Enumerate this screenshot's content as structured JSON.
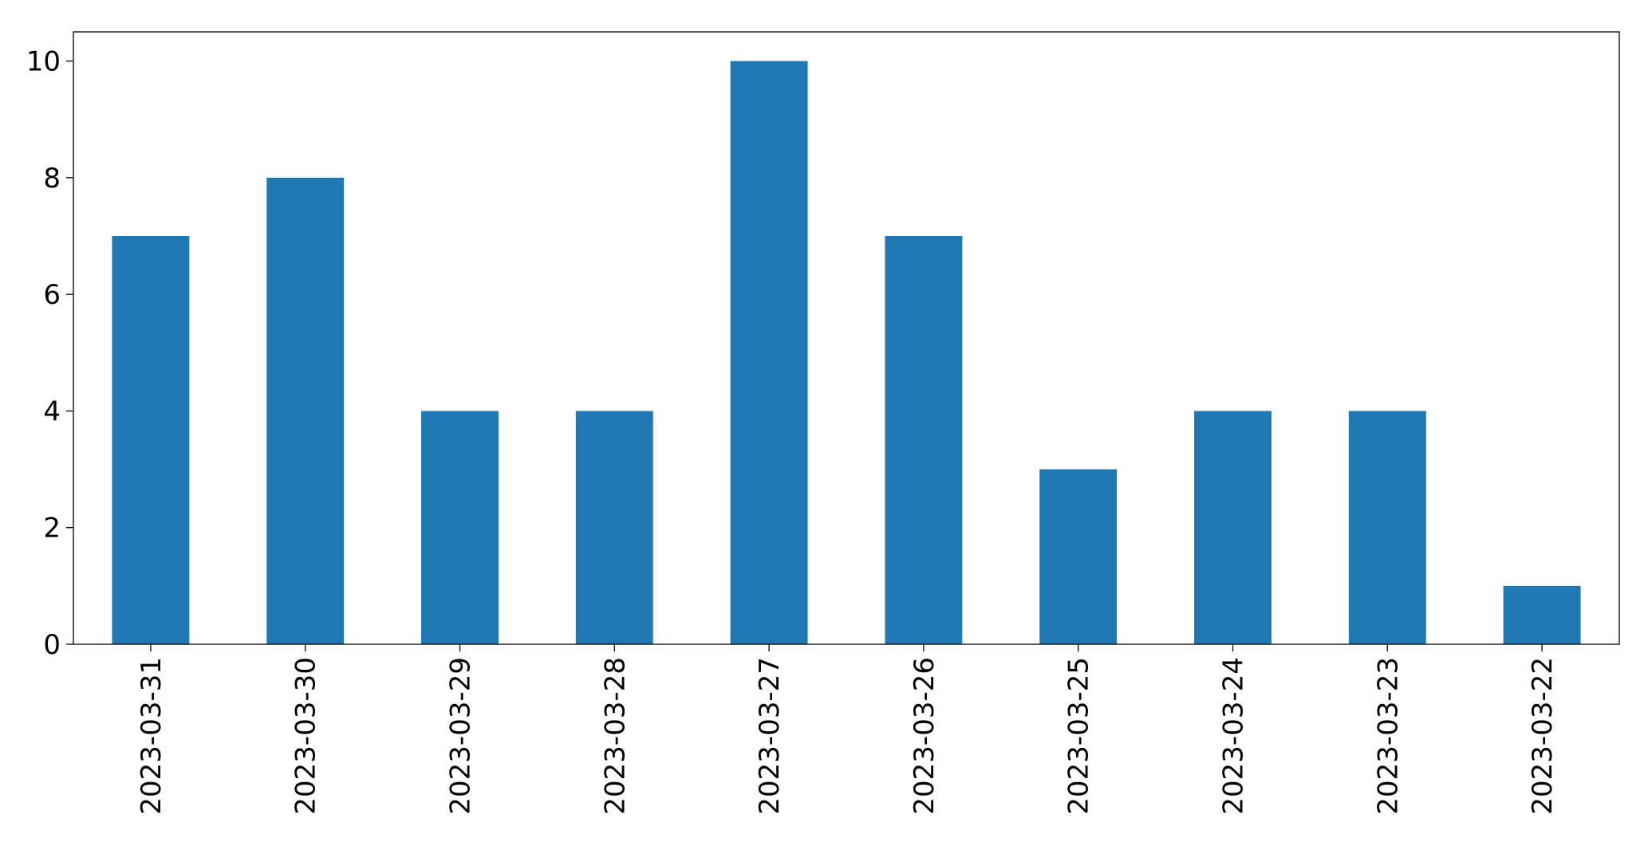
{
  "chart_data": {
    "type": "bar",
    "categories": [
      "2023-03-31",
      "2023-03-30",
      "2023-03-29",
      "2023-03-28",
      "2023-03-27",
      "2023-03-26",
      "2023-03-25",
      "2023-03-24",
      "2023-03-23",
      "2023-03-22"
    ],
    "values": [
      7,
      8,
      4,
      4,
      10,
      7,
      3,
      4,
      4,
      1
    ],
    "color": "#1f77b4",
    "ylim": [
      0,
      10.5
    ],
    "yticks": [
      0,
      2,
      4,
      6,
      8,
      10
    ],
    "grid": false
  }
}
